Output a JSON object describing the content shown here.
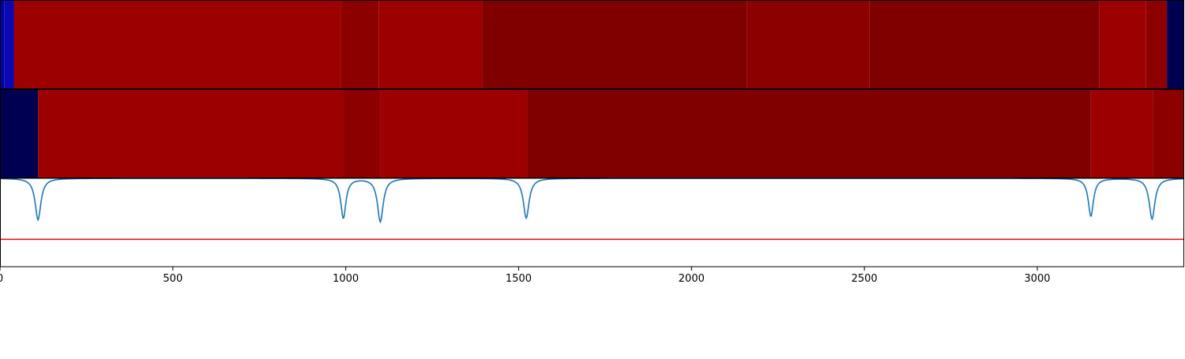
{
  "chart_data": {
    "type": "heatmap",
    "xlim": [
      0,
      3425
    ],
    "x_ticks": [
      0,
      500,
      1000,
      1500,
      2000,
      2500,
      3000
    ],
    "x_tick_labels": [
      "0",
      "500",
      "1000",
      "1500",
      "2000",
      "2500",
      "3000"
    ],
    "grid": false,
    "panels": [
      {
        "name": "",
        "type": "heatmap",
        "segments": [
          {
            "x0": 0,
            "x1": 12,
            "color": "#0000a0"
          },
          {
            "x0": 12,
            "x1": 40,
            "color": "#0a0ab4"
          },
          {
            "x0": 40,
            "x1": 985,
            "color": "#9c0000"
          },
          {
            "x0": 985,
            "x1": 1095,
            "color": "#8c0000"
          },
          {
            "x0": 1095,
            "x1": 1395,
            "color": "#9c0000"
          },
          {
            "x0": 1395,
            "x1": 2160,
            "color": "#800000"
          },
          {
            "x0": 2160,
            "x1": 2515,
            "color": "#8c0000"
          },
          {
            "x0": 2515,
            "x1": 3180,
            "color": "#800000"
          },
          {
            "x0": 3180,
            "x1": 3315,
            "color": "#9c0000"
          },
          {
            "x0": 3315,
            "x1": 3375,
            "color": "#8c0000"
          },
          {
            "x0": 3375,
            "x1": 3425,
            "color": "#000050"
          }
        ]
      },
      {
        "name": "",
        "type": "heatmap",
        "segments": [
          {
            "x0": 0,
            "x1": 110,
            "color": "#000050"
          },
          {
            "x0": 110,
            "x1": 995,
            "color": "#9c0000"
          },
          {
            "x0": 995,
            "x1": 1100,
            "color": "#8c0000"
          },
          {
            "x0": 1100,
            "x1": 1525,
            "color": "#9c0000"
          },
          {
            "x0": 1525,
            "x1": 3155,
            "color": "#800000"
          },
          {
            "x0": 3155,
            "x1": 3335,
            "color": "#9c0000"
          },
          {
            "x0": 3335,
            "x1": 3425,
            "color": "#8c0000"
          }
        ]
      },
      {
        "name": "",
        "type": "line",
        "ylim": [
          0,
          1
        ],
        "line_color": "#1f77b4",
        "baseline": 1.0,
        "dips": [
          {
            "x": 110,
            "depth": 0.47,
            "width": 10
          },
          {
            "x": 993,
            "depth": 0.45,
            "width": 9
          },
          {
            "x": 1100,
            "depth": 0.49,
            "width": 10
          },
          {
            "x": 1522,
            "depth": 0.45,
            "width": 10
          },
          {
            "x": 3155,
            "depth": 0.43,
            "width": 9
          },
          {
            "x": 3332,
            "depth": 0.46,
            "width": 10
          }
        ],
        "threshold": {
          "y": 0.31,
          "color": "#e41a1c"
        }
      }
    ]
  }
}
